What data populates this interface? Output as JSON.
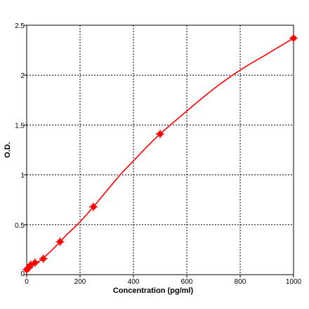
{
  "chart_data": {
    "type": "scatter",
    "title": "",
    "xlabel": "Concentration (pg/ml)",
    "ylabel": "O.D.",
    "xlim": [
      0,
      1000
    ],
    "ylim": [
      0,
      2.5
    ],
    "x_ticks": [
      0,
      200,
      400,
      600,
      800,
      1000
    ],
    "y_ticks": [
      0,
      0.5,
      1,
      1.5,
      2,
      2.5
    ],
    "x_tick_labels": [
      "0",
      "200",
      "400",
      "600",
      "800",
      "1000"
    ],
    "y_tick_labels": [
      "0",
      "0.5",
      "1",
      "1.5",
      "2",
      "2.5"
    ],
    "grid": "dotted",
    "series": [
      {
        "color": "#ff0000",
        "points": [
          {
            "x": 0,
            "y": 0.05
          },
          {
            "x": 7.8,
            "y": 0.07
          },
          {
            "x": 15.6,
            "y": 0.1
          },
          {
            "x": 31.25,
            "y": 0.12
          },
          {
            "x": 62.5,
            "y": 0.16
          },
          {
            "x": 125,
            "y": 0.33
          },
          {
            "x": 250,
            "y": 0.68
          },
          {
            "x": 500,
            "y": 1.41
          },
          {
            "x": 1000,
            "y": 2.37
          }
        ],
        "fit_curve": [
          {
            "x": 0,
            "y": 0.05
          },
          {
            "x": 50,
            "y": 0.14
          },
          {
            "x": 100,
            "y": 0.26
          },
          {
            "x": 150,
            "y": 0.4
          },
          {
            "x": 200,
            "y": 0.53
          },
          {
            "x": 250,
            "y": 0.68
          },
          {
            "x": 300,
            "y": 0.84
          },
          {
            "x": 350,
            "y": 1.0
          },
          {
            "x": 400,
            "y": 1.14
          },
          {
            "x": 450,
            "y": 1.28
          },
          {
            "x": 500,
            "y": 1.41
          },
          {
            "x": 600,
            "y": 1.64
          },
          {
            "x": 700,
            "y": 1.86
          },
          {
            "x": 800,
            "y": 2.05
          },
          {
            "x": 900,
            "y": 2.21
          },
          {
            "x": 1000,
            "y": 2.37
          }
        ]
      }
    ]
  }
}
